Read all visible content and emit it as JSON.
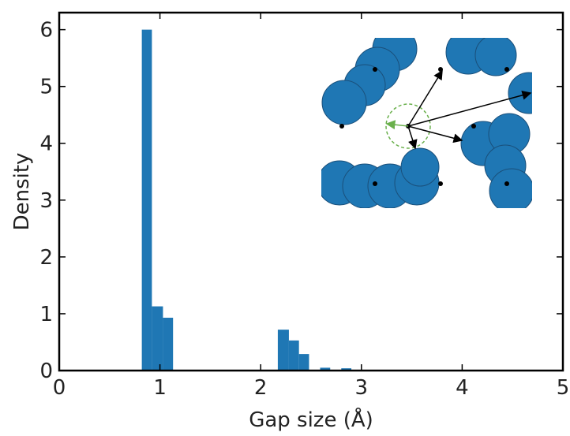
{
  "chart_data": {
    "type": "histogram",
    "xlabel": "Gap size (Å)",
    "ylabel": "Density",
    "bins": [
      0.82,
      0.92,
      1.03,
      1.13,
      1.24,
      1.34,
      1.44,
      1.55,
      1.65,
      1.76,
      1.86,
      1.96,
      2.07,
      2.17,
      2.28,
      2.38,
      2.48,
      2.59,
      2.69,
      2.8,
      2.9
    ],
    "values": [
      6.0,
      1.13,
      0.93,
      0,
      0,
      0,
      0,
      0,
      0,
      0,
      0,
      0,
      0,
      0.72,
      0.53,
      0.29,
      0,
      0.05,
      0,
      0.04
    ],
    "color": "#1f77b4",
    "xlim": [
      0,
      5
    ],
    "xticks": [
      0,
      1,
      2,
      3,
      4,
      5
    ],
    "ylim": [
      0,
      6.3
    ],
    "yticks": [
      0,
      1,
      2,
      3,
      4,
      5,
      6
    ]
  }
}
